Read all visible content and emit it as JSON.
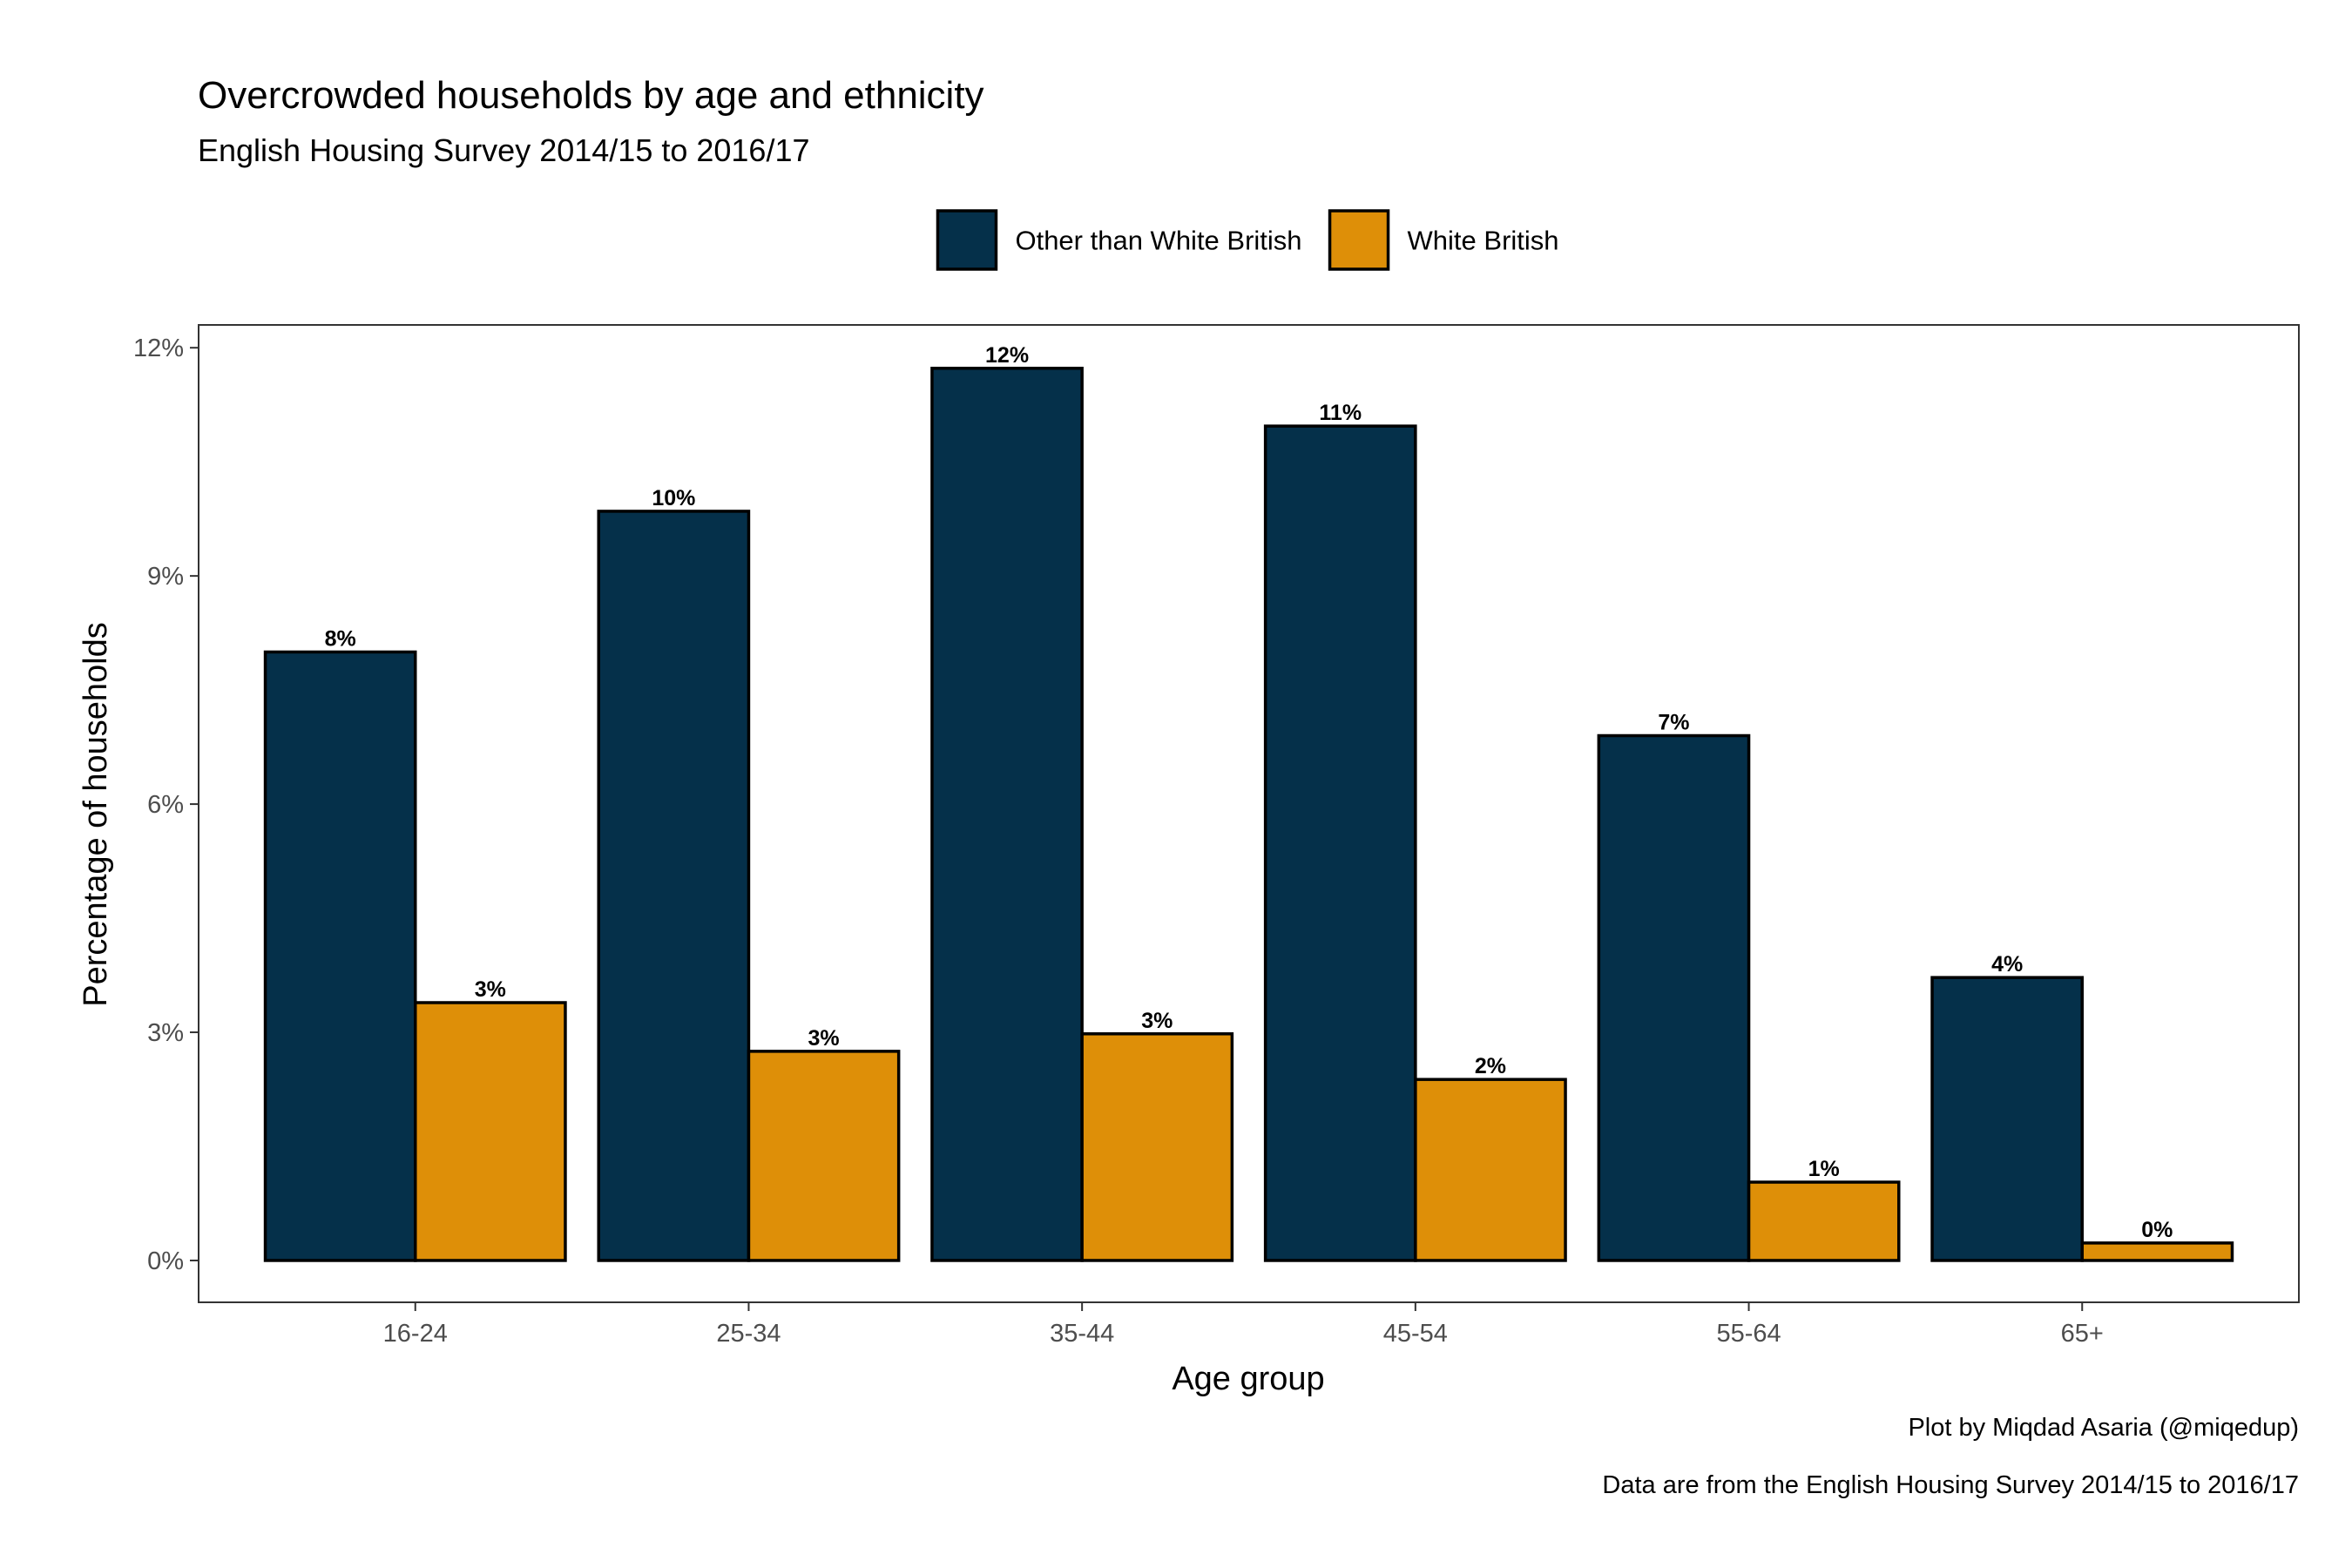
{
  "chart_data": {
    "type": "bar",
    "title": "Overcrowded households by age and ethnicity",
    "subtitle": "English Housing Survey 2014/15 to 2016/17",
    "xlabel": "Age group",
    "ylabel": "Percentage of households",
    "ylim": [
      -0.55,
      12.3
    ],
    "yticks": [
      0,
      3,
      6,
      9,
      12
    ],
    "ytick_labels": [
      "0%",
      "3%",
      "6%",
      "9%",
      "12%"
    ],
    "categories": [
      "16-24",
      "25-34",
      "35-44",
      "45-54",
      "55-64",
      "65+"
    ],
    "legend_position": "top",
    "grid": false,
    "series": [
      {
        "name": "Other than White British",
        "color": "#05304a",
        "values": [
          8.0,
          9.85,
          11.73,
          10.97,
          6.9,
          3.72
        ],
        "labels": [
          "8%",
          "10%",
          "12%",
          "11%",
          "7%",
          "4%"
        ]
      },
      {
        "name": "White British",
        "color": "#de8f08",
        "values": [
          3.39,
          2.75,
          2.98,
          2.38,
          1.03,
          0.23
        ],
        "labels": [
          "3%",
          "3%",
          "3%",
          "2%",
          "1%",
          "0%"
        ]
      }
    ],
    "captions": [
      "Plot by Miqdad Asaria (@miqedup)",
      "Data are from the English Housing Survey 2014/15 to 2016/17"
    ]
  }
}
